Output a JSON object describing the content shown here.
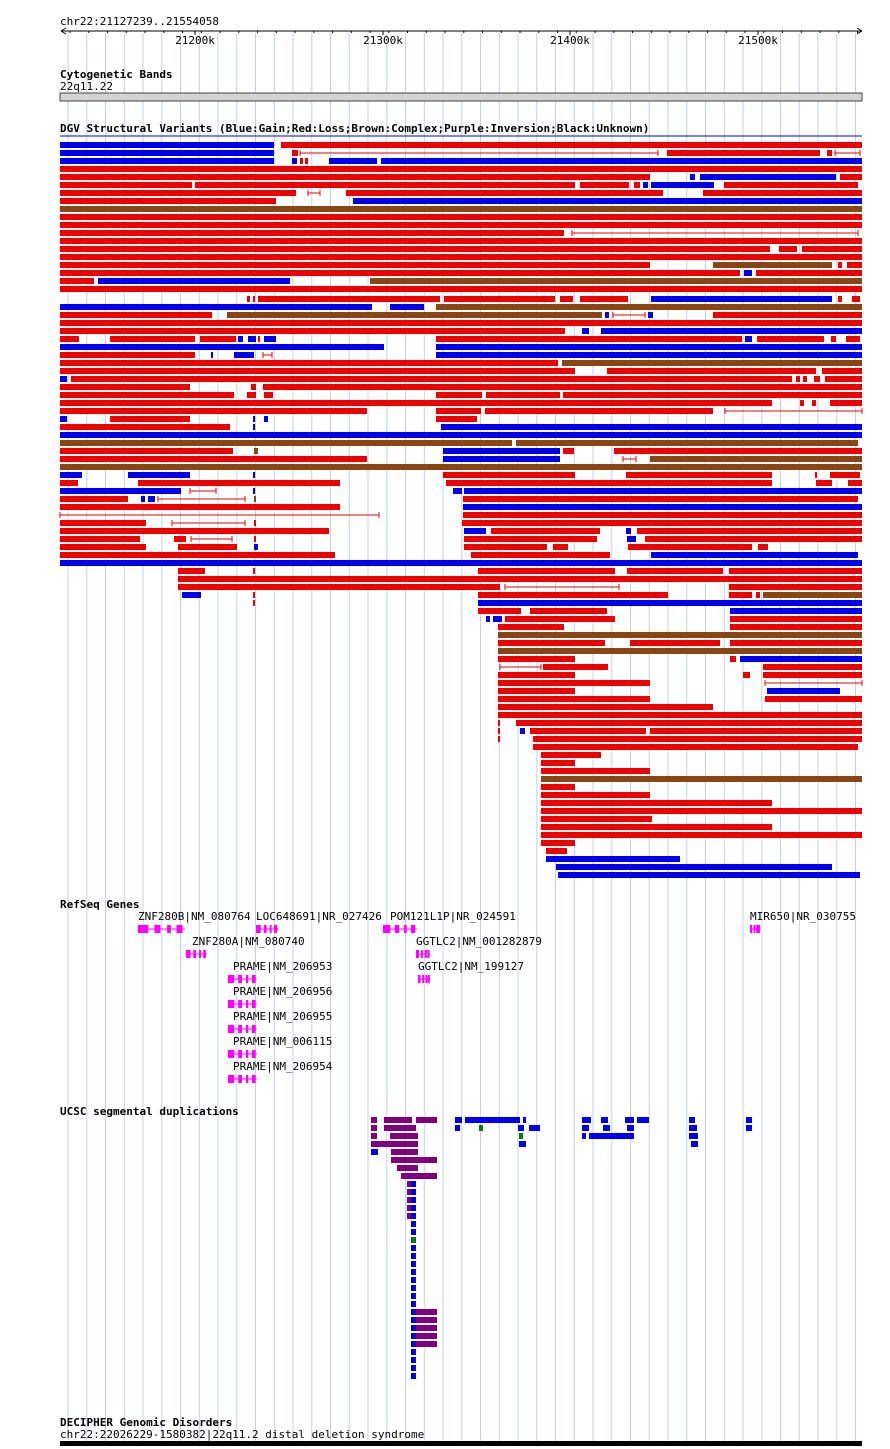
{
  "browser": {
    "locus": "chr22:21127239..21554058",
    "ruler_ticks": [
      "21200k",
      "21300k",
      "21400k",
      "21500k"
    ]
  },
  "colors": {
    "gain": "#0000ee",
    "loss": "#ee0000",
    "complex": "#8b4513",
    "inversion": "#800080",
    "unknown": "#000000",
    "gene": "#ff00ff",
    "grid": "#b9d3ee",
    "segdup_purple": "#800080",
    "segdup_blue": "#0000ee",
    "segdup_green": "#008000"
  },
  "tracks": {
    "cytoband": {
      "title": "Cytogenetic Bands",
      "band": "22q11.22"
    },
    "dgv": {
      "title": "DGV Structural Variants (Blue:Gain;Red:Loss;Brown:Complex;Purple:Inversion;Black:Unknown)"
    },
    "refseq": {
      "title": "RefSeq Genes",
      "genes": [
        {
          "label": "ZNF280B|NM_080764",
          "strand": "-"
        },
        {
          "label": "LOC648691|NR_027426",
          "strand": "+"
        },
        {
          "label": "POM121L1P|NR_024591",
          "strand": "-"
        },
        {
          "label": "MIR650|NR_030755",
          "strand": "+"
        },
        {
          "label": "ZNF280A|NM_080740",
          "strand": "-"
        },
        {
          "label": "GGTLC2|NM_001282879",
          "strand": "+"
        },
        {
          "label": "PRAME|NM_206953",
          "strand": "-"
        },
        {
          "label": "GGTLC2|NM_199127",
          "strand": "+"
        },
        {
          "label": "PRAME|NM_206956",
          "strand": "-"
        },
        {
          "label": "PRAME|NM_206955",
          "strand": "-"
        },
        {
          "label": "PRAME|NM_006115",
          "strand": "-"
        },
        {
          "label": "PRAME|NM_206954",
          "strand": "-"
        }
      ]
    },
    "segdup": {
      "title": "UCSC segmental duplications"
    },
    "decipher": {
      "title": "DECIPHER Genomic Disorders",
      "feature": "chr22:22026229-1580382|22q11.2 distal deletion syndrome"
    }
  }
}
